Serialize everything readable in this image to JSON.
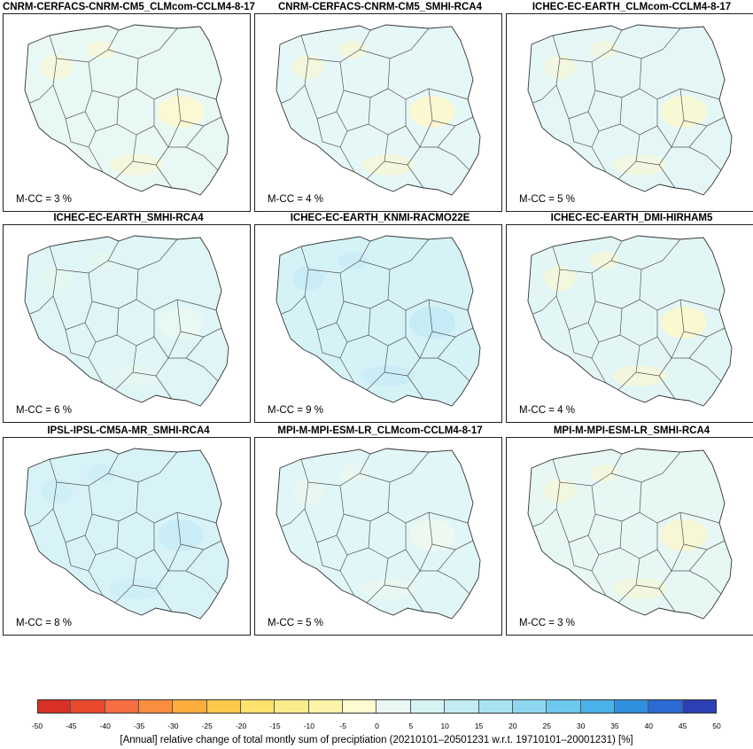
{
  "panels": [
    {
      "title": "CNRM-CERFACS-CNRM-CM5_CLMcom-CCLM4-8-17",
      "mcc": "M-CC = 3 %",
      "tint": "#e8f8f4",
      "patch": "#fdf8cf"
    },
    {
      "title": "CNRM-CERFACS-CNRM-CM5_SMHI-RCA4",
      "mcc": "M-CC = 4 %",
      "tint": "#e6f7f7",
      "patch": "#fcf6cc"
    },
    {
      "title": "ICHEC-EC-EARTH_CLMcom-CCLM4-8-17",
      "mcc": "M-CC = 5 %",
      "tint": "#e4f7f6",
      "patch": "#faf7d2"
    },
    {
      "title": "ICHEC-EC-EARTH_SMHI-RCA4",
      "mcc": "M-CC = 6 %",
      "tint": "#dff5f6",
      "patch": "#e9f8f2"
    },
    {
      "title": "ICHEC-EC-EARTH_KNMI-RACMO22E",
      "mcc": "M-CC = 9 %",
      "tint": "#d5f2f7",
      "patch": "#c4eaf6"
    },
    {
      "title": "ICHEC-EC-EARTH_DMI-HIRHAM5",
      "mcc": "M-CC = 4 %",
      "tint": "#e3f6f6",
      "patch": "#fcf8cd"
    },
    {
      "title": "IPSL-IPSL-CM5A-MR_SMHI-RCA4",
      "mcc": "M-CC = 8 %",
      "tint": "#d7f3f7",
      "patch": "#c9ecf6"
    },
    {
      "title": "MPI-M-MPI-ESM-LR_CLMcom-CCLM4-8-17",
      "mcc": "M-CC = 5 %",
      "tint": "#e1f6f6",
      "patch": "#eef9f0"
    },
    {
      "title": "MPI-M-MPI-ESM-LR_SMHI-RCA4",
      "mcc": "M-CC = 3 %",
      "tint": "#e6f7f4",
      "patch": "#faf6d0"
    }
  ],
  "colorbar": {
    "ticks": [
      "-50",
      "-45",
      "-40",
      "-35",
      "-30",
      "-25",
      "-20",
      "-15",
      "-10",
      "-5",
      "0",
      "5",
      "10",
      "15",
      "20",
      "25",
      "30",
      "35",
      "40",
      "45",
      "50"
    ],
    "colors": [
      "#d73027",
      "#ea4a2c",
      "#f46d43",
      "#f98e3e",
      "#fbad3e",
      "#fdc94d",
      "#fde26e",
      "#fdec8d",
      "#fdf4aa",
      "#fefbd0",
      "#e8f7f3",
      "#d6f3f4",
      "#c2ecf3",
      "#a9e3f2",
      "#8dd8f0",
      "#6cc8ec",
      "#4ab2e8",
      "#3090e0",
      "#2a6ad2",
      "#2c3fb5"
    ],
    "caption": "[Annual]  relative change of total montly sum of preciptiation (20210101–20501231 w.r.t. 19710101–20001231) [%]"
  }
}
